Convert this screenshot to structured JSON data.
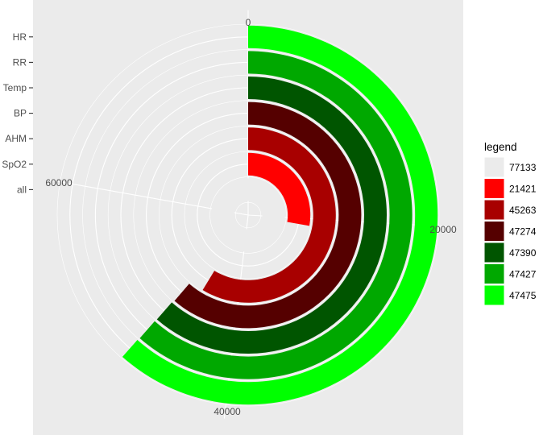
{
  "chart_data": {
    "type": "bar",
    "coord": "polar",
    "categories": [
      "HR",
      "RR",
      "Temp",
      "BP",
      "AHM",
      "SpO2",
      "all"
    ],
    "values": [
      47475,
      47427,
      47390,
      47274,
      45263,
      21421,
      77133
    ],
    "angle_axis": {
      "max": 77133,
      "ticks": [
        0,
        20000,
        40000,
        60000
      ],
      "tick_labels": [
        "0",
        "20000",
        "40000",
        "60000"
      ]
    },
    "radial_axis": {
      "tick_labels": [
        "HR",
        "RR",
        "Temp",
        "BP",
        "AHM",
        "SpO2",
        "all"
      ]
    },
    "legend": {
      "title": "legend",
      "position": "right",
      "entries": [
        {
          "label": "77133",
          "color": "#ebebeb"
        },
        {
          "label": "21421",
          "color": "#ff0000"
        },
        {
          "label": "45263",
          "color": "#a80000"
        },
        {
          "label": "47274",
          "color": "#550000"
        },
        {
          "label": "47390",
          "color": "#005500"
        },
        {
          "label": "47427",
          "color": "#00a800"
        },
        {
          "label": "47475",
          "color": "#00ff00"
        }
      ]
    },
    "bar_colors": {
      "HR": "#00ff00",
      "RR": "#00a800",
      "Temp": "#005500",
      "BP": "#550000",
      "AHM": "#a80000",
      "SpO2": "#ff0000",
      "all": "#ebebeb"
    },
    "grid": true,
    "panel_background": "#ebebeb"
  }
}
